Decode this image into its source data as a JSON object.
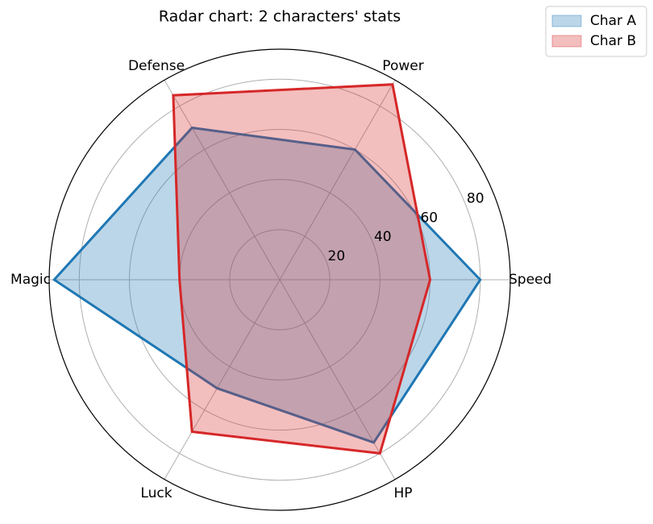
{
  "chart_data": {
    "type": "radar",
    "title": "Radar chart: 2 characters' stats",
    "categories": [
      "Speed",
      "Power",
      "Defense",
      "Magic",
      "Luck",
      "HP"
    ],
    "series": [
      {
        "name": "Char A",
        "color": "#1f77b4",
        "values": [
          80,
          60,
          70,
          90,
          50,
          75
        ]
      },
      {
        "name": "Char B",
        "color": "#d62728",
        "values": [
          60,
          90,
          85,
          40,
          70,
          80
        ]
      }
    ],
    "ylim": [
      0,
      92
    ],
    "yticks": [
      20,
      40,
      60,
      80
    ],
    "grid": true,
    "legend": "upper right"
  }
}
